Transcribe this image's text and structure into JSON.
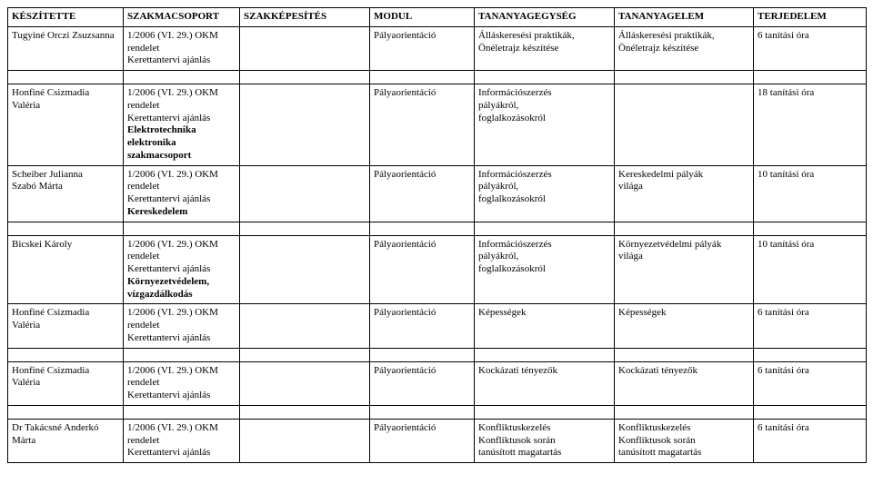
{
  "headers": {
    "c0": "KÉSZÍTETTE",
    "c1": "SZAKMACSOPORT",
    "c2": "SZAKKÉPESÍTÉS",
    "c3": "MODUL",
    "c4": "TANANYAGEGYSÉG",
    "c5": "TANANYAGELEM",
    "c6": "TERJEDELEM"
  },
  "rows": [
    {
      "keszitette": "Tugyiné Orczi Zsuzsanna",
      "szakmacsoport": "1/2006 (VI. 29.) OKM\nrendelet\nKerettantervi ajánlás",
      "szakmacsoport_bold": "",
      "szakkepesites": "",
      "modul": "Pályaorientáció",
      "egyseg": "Álláskeresési praktikák,\nÖnéletrajz készítése",
      "elem": "Álláskeresési praktikák,\nÖnéletrajz készítése",
      "terjedelem": "6 tanítási óra"
    },
    {
      "keszitette": "Honfiné Csizmadia\nValéria",
      "szakmacsoport": "1/2006 (VI. 29.) OKM\nrendelet\nKerettantervi ajánlás",
      "szakmacsoport_bold": "Elektrotechnika\nelektronika\nszakmacsoport",
      "szakkepesites": "",
      "modul": "Pályaorientáció",
      "egyseg": "Információszerzés\npályákról,\nfoglalkozásokról",
      "elem": "",
      "terjedelem": "18 tanítási óra"
    },
    {
      "keszitette": "Scheiber Julianna\nSzabó Márta",
      "szakmacsoport": "1/2006 (VI. 29.) OKM\nrendelet\nKerettantervi ajánlás",
      "szakmacsoport_bold": "Kereskedelem",
      "szakkepesites": "",
      "modul": "Pályaorientáció",
      "egyseg": "Információszerzés\npályákról,\nfoglalkozásokról",
      "elem": "Kereskedelmi pályák\nvilága",
      "terjedelem": "10 tanítási óra"
    },
    {
      "keszitette": "Bicskei Károly",
      "szakmacsoport": "1/2006 (VI. 29.) OKM\nrendelet\nKerettantervi ajánlás",
      "szakmacsoport_bold": "Környezetvédelem,\nvízgazdálkodás",
      "szakkepesites": "",
      "modul": "Pályaorientáció",
      "egyseg": "Információszerzés\npályákról,\nfoglalkozásokról",
      "elem": "Környezetvédelmi pályák\nvilága",
      "terjedelem": "10 tanítási óra"
    },
    {
      "keszitette": "Honfiné Csizmadia\nValéria",
      "szakmacsoport": "1/2006 (VI. 29.) OKM\nrendelet\nKerettantervi ajánlás",
      "szakmacsoport_bold": "",
      "szakkepesites": "",
      "modul": "Pályaorientáció",
      "egyseg": "Képességek",
      "elem": "Képességek",
      "terjedelem": "6 tanítási óra"
    },
    {
      "keszitette": "Honfiné Csizmadia\nValéria",
      "szakmacsoport": "1/2006 (VI. 29.) OKM\nrendelet\nKerettantervi ajánlás",
      "szakmacsoport_bold": "",
      "szakkepesites": "",
      "modul": "Pályaorientáció",
      "egyseg": "Kockázati tényezők",
      "elem": "Kockázati tényezők",
      "terjedelem": "6 tanítási óra"
    },
    {
      "keszitette": "Dr Takácsné Anderkó\nMárta",
      "szakmacsoport": "1/2006 (VI. 29.) OKM\nrendelet\nKerettantervi ajánlás",
      "szakmacsoport_bold": "",
      "szakkepesites": "",
      "modul": "Pályaorientáció",
      "egyseg": "Konfliktuskezelés\nKonfliktusok során\ntanúsított magatartás",
      "elem": "Konfliktuskezelés\nKonfliktusok során\ntanúsított magatartás",
      "terjedelem": "6 tanítási óra"
    }
  ],
  "gaps_after": [
    0,
    2,
    4,
    5
  ]
}
